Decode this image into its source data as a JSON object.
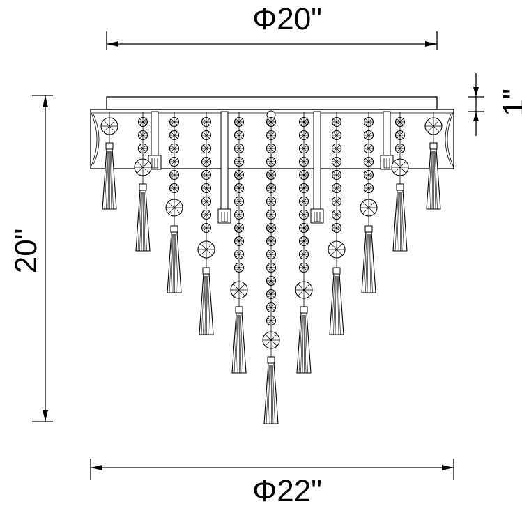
{
  "dimensions": {
    "top_width": "Φ20\"",
    "canopy_height": "1\"",
    "overall_height": "20\"",
    "bottom_width": "Φ22\""
  }
}
